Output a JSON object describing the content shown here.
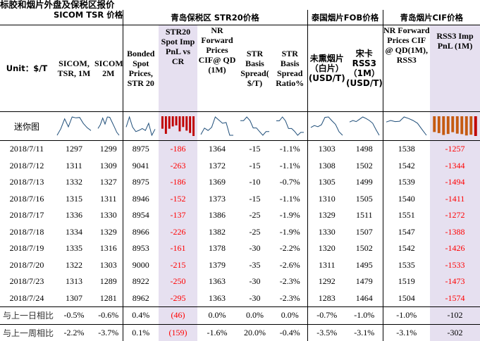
{
  "title": "标胶和烟片外盘及保税区报价",
  "groups": {
    "sicom": "SICOM TSR 价格",
    "str20": "青岛保税区 STR20价格",
    "fob": "泰国烟片FOB价格",
    "cif": "青岛烟片CIF价格"
  },
  "unit_label": "Unit：$/T",
  "columns": [
    "SICOM, TSR, 1M",
    "SICOM,TSR, 2M",
    "Bonded Spot Prices, STR 20",
    "STR20 Spot Imp PnL vs CR",
    "NR Forward Prices CIF@ QD (1M)",
    "STR Basis Spread( $/T)",
    "STR Basis Spread Ratio%",
    "未熏烟片（白片）(USD/T)",
    "宋卡 RSS3（1M）(USD/T)",
    "NR Forward Prices CIF @ QD(1M), RSS3",
    "RSS3 Imp PnL (1M)"
  ],
  "spark_label": "迷你图",
  "rows": [
    {
      "date": "2018/7/11",
      "v": [
        "1297",
        "1299",
        "8975",
        "-186",
        "1364",
        "-15",
        "-1.1%",
        "1303",
        "1498",
        "1538",
        "-1257"
      ]
    },
    {
      "date": "2018/7/12",
      "v": [
        "1311",
        "1309",
        "9041",
        "-263",
        "1372",
        "-15",
        "-1.1%",
        "1308",
        "1502",
        "1542",
        "-1344"
      ]
    },
    {
      "date": "2018/7/13",
      "v": [
        "1332",
        "1327",
        "8975",
        "-186",
        "1369",
        "-10",
        "-0.7%",
        "1305",
        "1499",
        "1539",
        "-1494"
      ]
    },
    {
      "date": "2018/7/16",
      "v": [
        "1315",
        "1311",
        "8946",
        "-152",
        "1373",
        "-15",
        "-1.1%",
        "1310",
        "1505",
        "1540",
        "-1411"
      ]
    },
    {
      "date": "2018/7/17",
      "v": [
        "1336",
        "1330",
        "8954",
        "-137",
        "1386",
        "-25",
        "-1.9%",
        "1329",
        "1511",
        "1551",
        "-1272"
      ]
    },
    {
      "date": "2018/7/18",
      "v": [
        "1334",
        "1329",
        "8966",
        "-226",
        "1382",
        "-25",
        "-1.9%",
        "1330",
        "1507",
        "1547",
        "-1388"
      ]
    },
    {
      "date": "2018/7/19",
      "v": [
        "1335",
        "1316",
        "8953",
        "-161",
        "1378",
        "-30",
        "-2.2%",
        "1320",
        "1502",
        "1542",
        "-1426"
      ]
    },
    {
      "date": "2018/7/20",
      "v": [
        "1322",
        "1303",
        "9000",
        "-215",
        "1379",
        "-35",
        "-2.6%",
        "1311",
        "1495",
        "1535",
        "-1533"
      ]
    },
    {
      "date": "2018/7/23",
      "v": [
        "1313",
        "1289",
        "8922",
        "-250",
        "1363",
        "-30",
        "-2.3%",
        "1292",
        "1479",
        "1519",
        "-1473"
      ]
    },
    {
      "date": "2018/7/24",
      "v": [
        "1307",
        "1281",
        "8962",
        "-295",
        "1363",
        "-30",
        "-2.3%",
        "1283",
        "1464",
        "1504",
        "-1574"
      ]
    }
  ],
  "changes": [
    {
      "label": "与上一日相比",
      "v": [
        "-0.5%",
        "-0.6%",
        "0.4%",
        "(46)",
        "0.0%",
        "0.0%",
        "0.0%",
        "-0.7%",
        "-1.0%",
        "-1.0%",
        "-102"
      ]
    },
    {
      "label": "与上一周相比",
      "v": [
        "-2.2%",
        "-3.7%",
        "0.1%",
        "(159)",
        "-1.6%",
        "20.0%",
        "-0.4%",
        "-3.5%",
        "-3.1%",
        "-3.1%",
        "-302"
      ]
    }
  ],
  "colors": {
    "negative": "#ff0000",
    "highlight": "#e6e0f0",
    "sparkline": "#1f4e79",
    "bar_red": "#c00000",
    "bar_orange": "#c55a11"
  }
}
